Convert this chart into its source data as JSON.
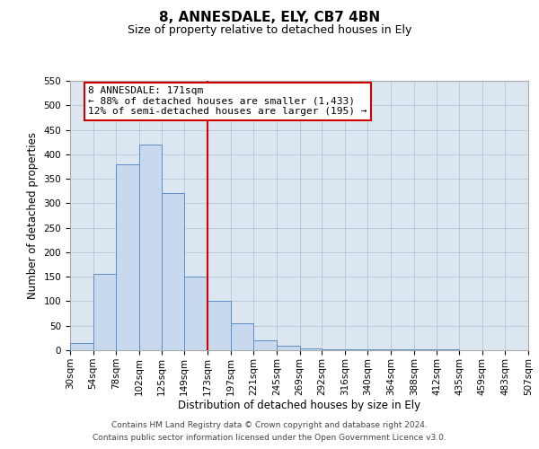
{
  "title": "8, ANNESDALE, ELY, CB7 4BN",
  "subtitle": "Size of property relative to detached houses in Ely",
  "xlabel": "Distribution of detached houses by size in Ely",
  "ylabel": "Number of detached properties",
  "bin_edges": [
    30,
    54,
    78,
    102,
    125,
    149,
    173,
    197,
    221,
    245,
    269,
    292,
    316,
    340,
    364,
    388,
    412,
    435,
    459,
    483,
    507
  ],
  "bar_heights": [
    15,
    155,
    380,
    420,
    320,
    150,
    100,
    55,
    20,
    10,
    3,
    2,
    1,
    1,
    1,
    1,
    1,
    0,
    0,
    0
  ],
  "bar_color": "#c9d9ed",
  "bar_edge_color": "#5b8fc9",
  "property_line_x": 173,
  "property_line_color": "#cc0000",
  "ylim": [
    0,
    550
  ],
  "yticks": [
    0,
    50,
    100,
    150,
    200,
    250,
    300,
    350,
    400,
    450,
    500,
    550
  ],
  "annotation_title": "8 ANNESDALE: 171sqm",
  "annotation_line1": "← 88% of detached houses are smaller (1,433)",
  "annotation_line2": "12% of semi-detached houses are larger (195) →",
  "annotation_box_color": "#ffffff",
  "annotation_box_edge_color": "#cc0000",
  "footer_line1": "Contains HM Land Registry data © Crown copyright and database right 2024.",
  "footer_line2": "Contains public sector information licensed under the Open Government Licence v3.0.",
  "plot_bg_color": "#dce6f1",
  "grid_color": "#b8c4d4",
  "title_fontsize": 11,
  "subtitle_fontsize": 9,
  "axis_label_fontsize": 8.5,
  "tick_fontsize": 7.5,
  "annotation_fontsize": 8,
  "footer_fontsize": 6.5
}
